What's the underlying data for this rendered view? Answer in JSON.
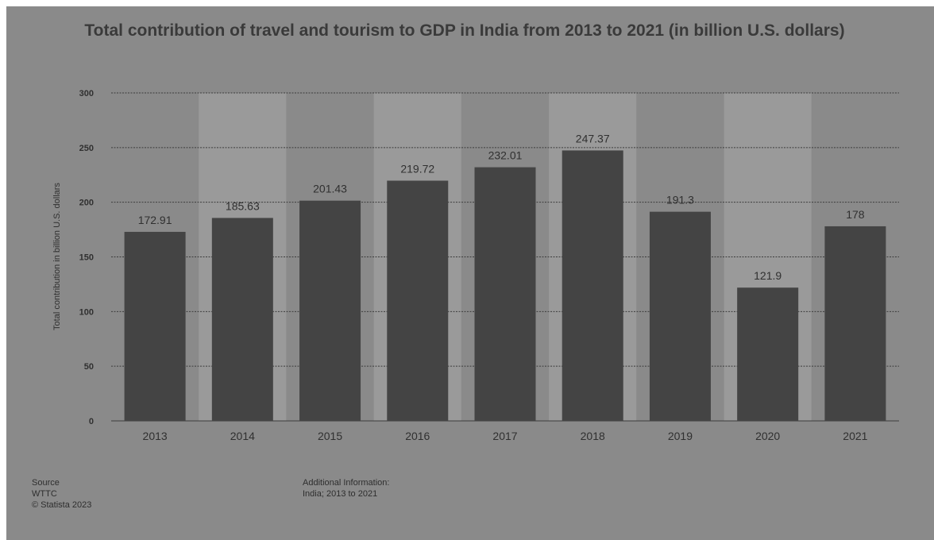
{
  "colors": {
    "bar": "#444444",
    "band_light": "#9a9a9a",
    "band_dark": "#8a8a8a",
    "gridline": "#3c3c3c",
    "text": "#303030"
  },
  "chart_data": {
    "type": "bar",
    "title": "Total contribution of travel and tourism to GDP in India from 2013 to 2021 (in billion U.S. dollars)",
    "xlabel": "",
    "ylabel": "Total contribution in billion U.S. dollars",
    "categories": [
      "2013",
      "2014",
      "2015",
      "2016",
      "2017",
      "2018",
      "2019",
      "2020",
      "2021"
    ],
    "values": [
      172.91,
      185.63,
      201.43,
      219.72,
      232.01,
      247.37,
      191.3,
      121.9,
      178
    ],
    "value_labels": [
      "172.91",
      "185.63",
      "201.43",
      "219.72",
      "232.01",
      "247.37",
      "191.3",
      "121.9",
      "178"
    ],
    "ylim": [
      0,
      300
    ],
    "yticks": [
      "0",
      "50",
      "100",
      "150",
      "200",
      "250",
      "300"
    ],
    "grid": true
  },
  "footer": {
    "source_label": "Source",
    "source_name": "WTTC",
    "copyright": "© Statista 2023",
    "info_label": "Additional Information:",
    "info_text": "India; 2013 to 2021"
  }
}
